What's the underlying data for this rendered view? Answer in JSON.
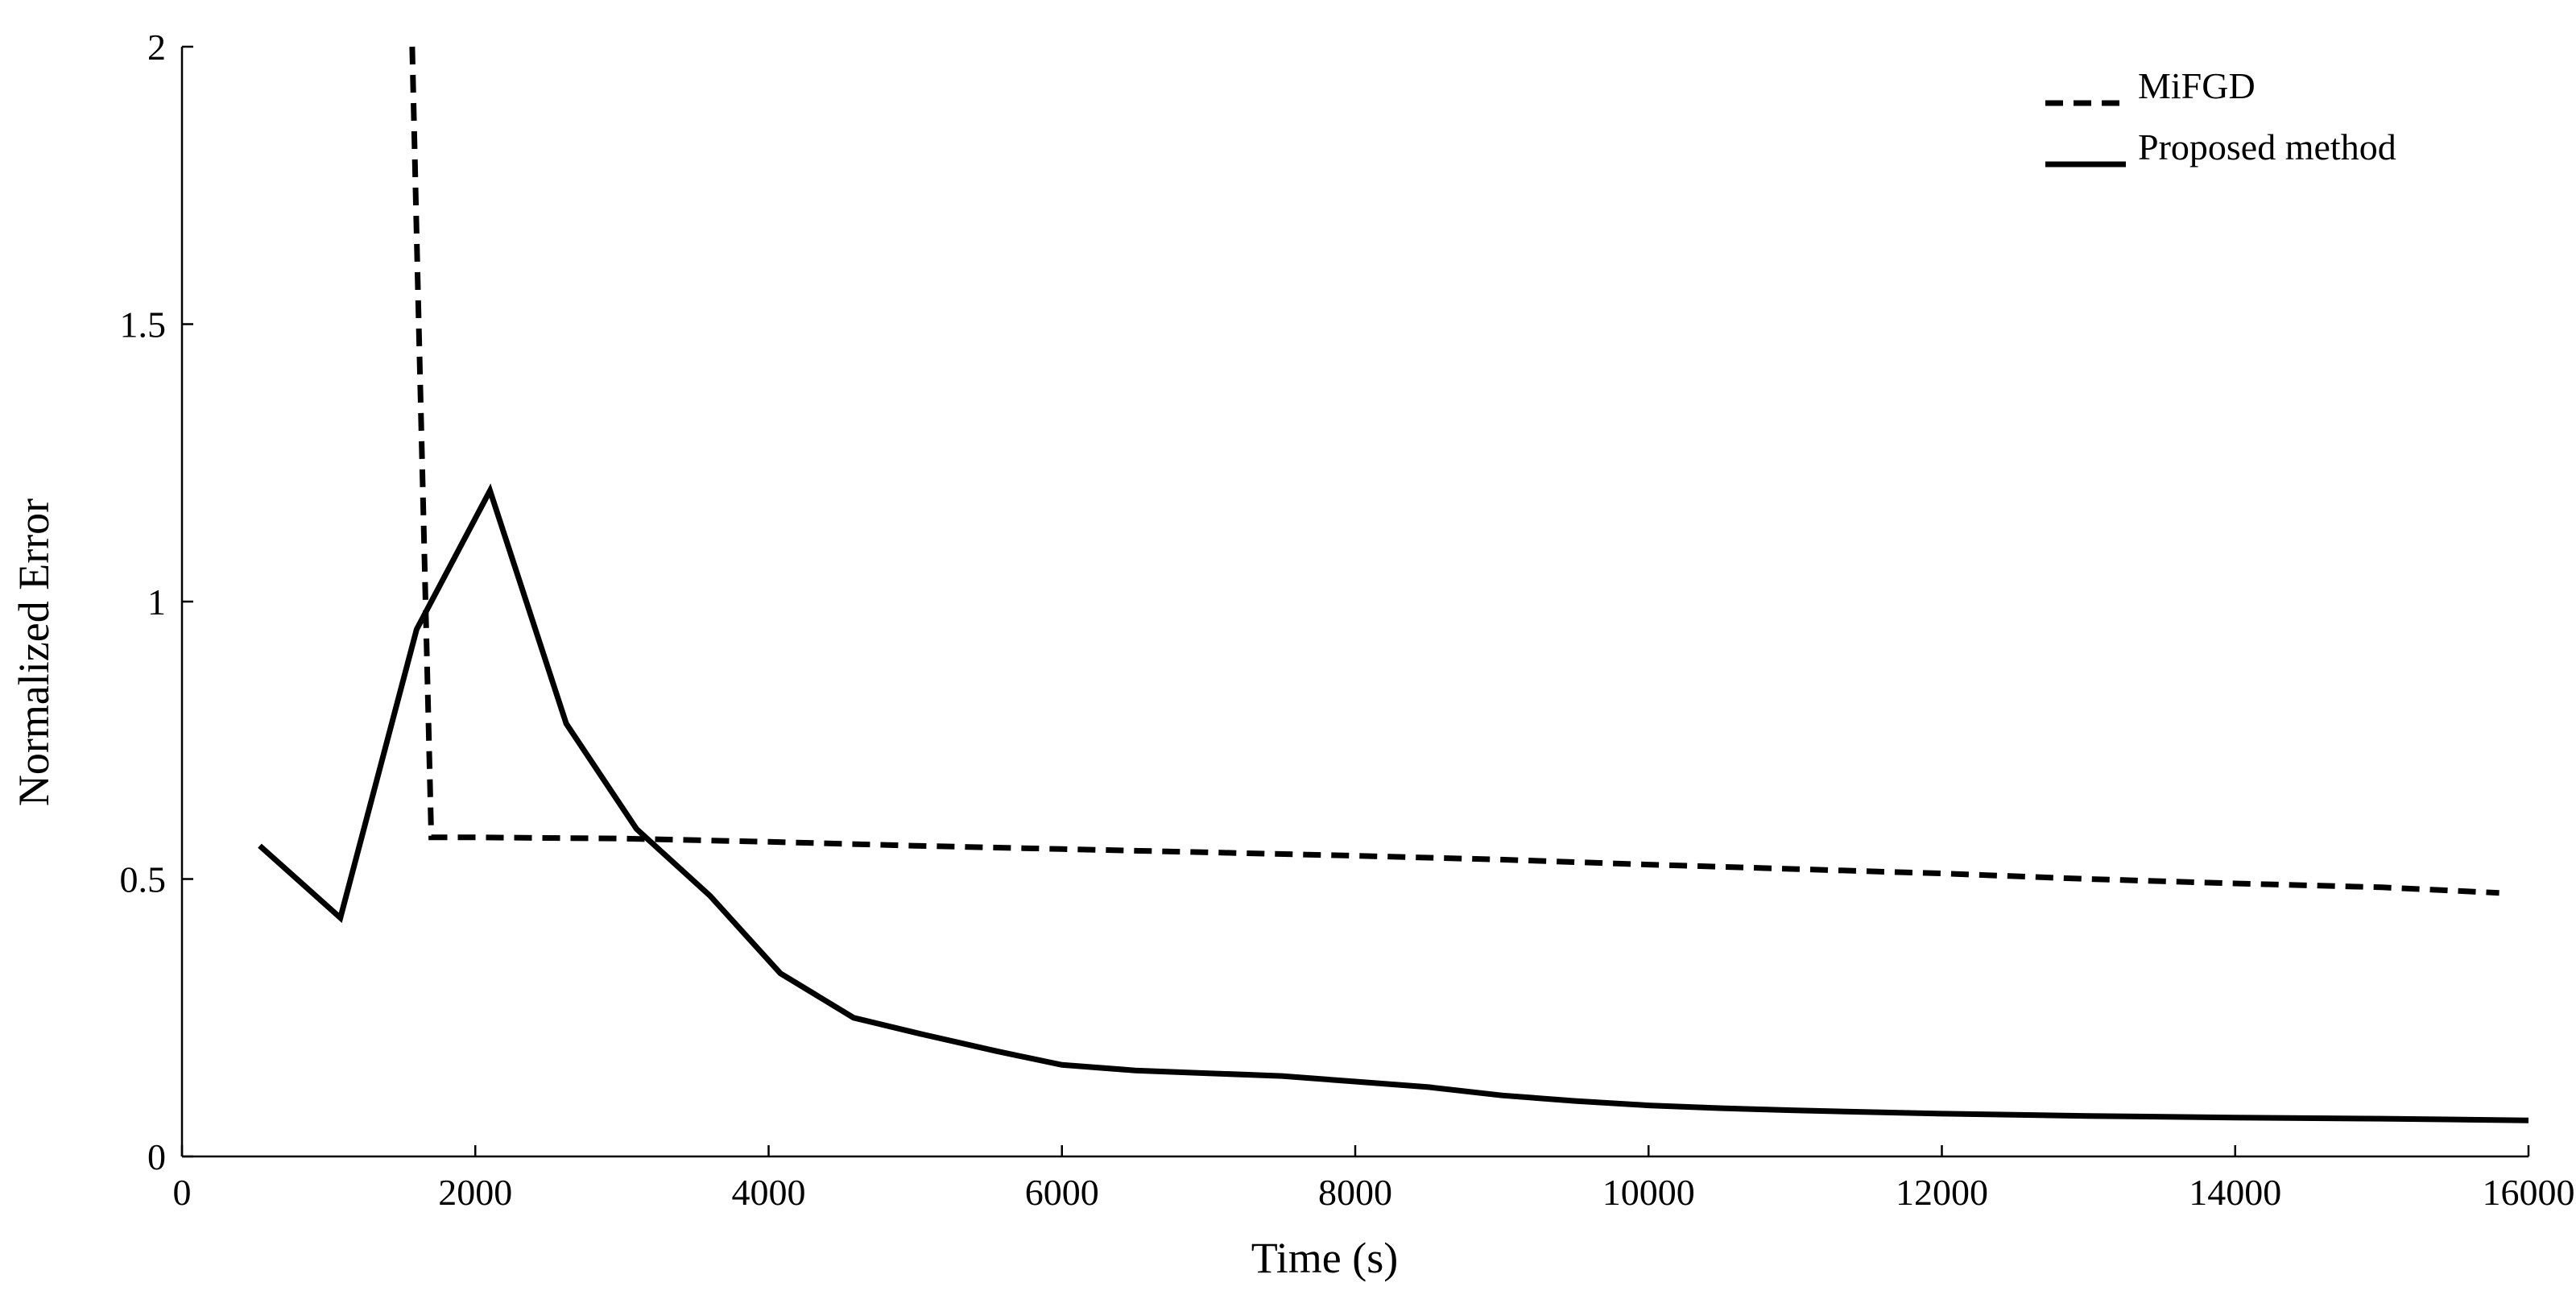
{
  "chart_data": {
    "type": "line",
    "title": "",
    "xlabel": "Time (s)",
    "ylabel": "Normalized Error",
    "xlim": [
      0,
      16000
    ],
    "ylim": [
      0,
      2
    ],
    "xticks": [
      0,
      2000,
      4000,
      6000,
      8000,
      10000,
      12000,
      14000,
      16000
    ],
    "xtick_labels": [
      "0",
      "2000",
      "4000",
      "6000",
      "8000",
      "10000",
      "12000",
      "14000",
      "16000"
    ],
    "yticks": [
      0,
      0.5,
      1,
      1.5,
      2
    ],
    "ytick_labels": [
      "0",
      "0.5",
      "1",
      "1.5",
      "2"
    ],
    "grid": false,
    "legend_position": "top-right",
    "series": [
      {
        "name": "MiFGD",
        "style": "dashed",
        "color": "#000000",
        "x": [
          1570,
          1610,
          1700,
          2000,
          3000,
          4000,
          5000,
          6000,
          7000,
          8000,
          9000,
          10000,
          11000,
          12000,
          13000,
          14000,
          15000,
          15800
        ],
        "y": [
          2.0,
          1.55,
          0.575,
          0.575,
          0.573,
          0.567,
          0.56,
          0.554,
          0.548,
          0.542,
          0.535,
          0.526,
          0.518,
          0.51,
          0.5,
          0.492,
          0.485,
          0.475
        ]
      },
      {
        "name": "Proposed method",
        "style": "solid",
        "color": "#000000",
        "x": [
          530,
          1080,
          1600,
          2100,
          2620,
          3100,
          3600,
          4080,
          4580,
          5050,
          5550,
          6000,
          6500,
          7000,
          7500,
          8000,
          8500,
          9000,
          9500,
          10000,
          10500,
          11000,
          11500,
          12000,
          13000,
          14000,
          15000,
          16000
        ],
        "y": [
          0.56,
          0.43,
          0.95,
          1.2,
          0.78,
          0.59,
          0.47,
          0.33,
          0.25,
          0.22,
          0.19,
          0.165,
          0.155,
          0.15,
          0.145,
          0.135,
          0.125,
          0.11,
          0.1,
          0.092,
          0.087,
          0.083,
          0.08,
          0.077,
          0.073,
          0.07,
          0.068,
          0.065
        ]
      }
    ]
  }
}
